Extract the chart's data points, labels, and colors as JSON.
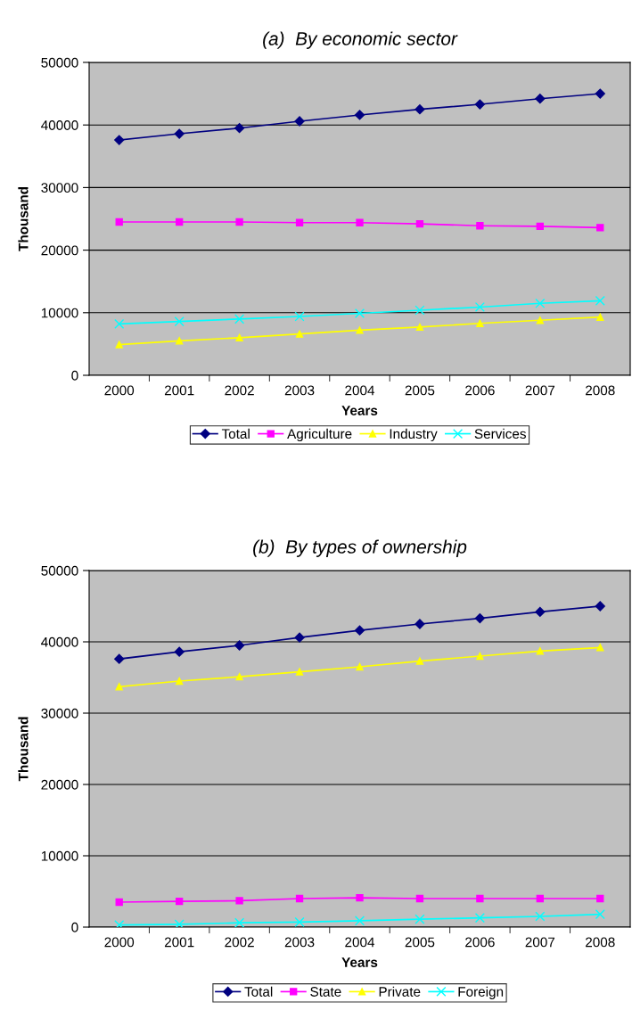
{
  "chart_data": [
    {
      "type": "line",
      "title": "(a)  By economic sector",
      "xlabel": "Years",
      "ylabel": "Thousand",
      "categories": [
        "2000",
        "2001",
        "2002",
        "2003",
        "2004",
        "2005",
        "2006",
        "2007",
        "2008"
      ],
      "ylim": [
        0,
        50000
      ],
      "yticks": [
        0,
        10000,
        20000,
        30000,
        40000,
        50000
      ],
      "grid": "y",
      "legend": "bottom",
      "series": [
        {
          "name": "Total",
          "color": "#000080",
          "marker": "diamond",
          "values": [
            37600,
            38600,
            39500,
            40600,
            41600,
            42500,
            43300,
            44200,
            45000
          ]
        },
        {
          "name": "Agriculture",
          "color": "#ff00ff",
          "marker": "square",
          "values": [
            24500,
            24500,
            24500,
            24400,
            24400,
            24200,
            23900,
            23800,
            23600
          ]
        },
        {
          "name": "Industry",
          "color": "#ffff00",
          "marker": "triangle",
          "values": [
            4900,
            5500,
            6000,
            6600,
            7200,
            7700,
            8300,
            8800,
            9300
          ]
        },
        {
          "name": "Services",
          "color": "#00ffff",
          "marker": "cross",
          "values": [
            8200,
            8600,
            9000,
            9400,
            9900,
            10400,
            10900,
            11500,
            11900
          ]
        }
      ]
    },
    {
      "type": "line",
      "title": "(b)  By types of ownership",
      "xlabel": "Years",
      "ylabel": "Thousand",
      "categories": [
        "2000",
        "2001",
        "2002",
        "2003",
        "2004",
        "2005",
        "2006",
        "2007",
        "2008"
      ],
      "ylim": [
        0,
        50000
      ],
      "yticks": [
        0,
        10000,
        20000,
        30000,
        40000,
        50000
      ],
      "grid": "y",
      "legend": "bottom",
      "series": [
        {
          "name": "Total",
          "color": "#000080",
          "marker": "diamond",
          "values": [
            37600,
            38600,
            39500,
            40600,
            41600,
            42500,
            43300,
            44200,
            45000
          ]
        },
        {
          "name": "State",
          "color": "#ff00ff",
          "marker": "square",
          "values": [
            3500,
            3600,
            3700,
            4000,
            4100,
            4000,
            4000,
            4000,
            4000
          ]
        },
        {
          "name": "Private",
          "color": "#ffff00",
          "marker": "triangle",
          "values": [
            33700,
            34500,
            35100,
            35800,
            36500,
            37300,
            38000,
            38700,
            39200
          ]
        },
        {
          "name": "Foreign",
          "color": "#00ffff",
          "marker": "cross",
          "values": [
            300,
            400,
            600,
            700,
            900,
            1100,
            1300,
            1500,
            1800
          ]
        }
      ]
    }
  ]
}
